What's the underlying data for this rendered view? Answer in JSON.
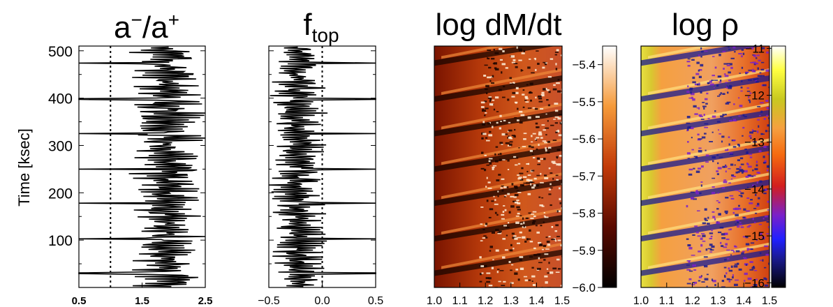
{
  "ylabel": "Time [ksec]",
  "chart_data": [
    {
      "type": "line",
      "title_main": "a",
      "title_sup1": "−",
      "title_mid": "/a",
      "title_sup2": "+",
      "x_ticks": [
        "0.5",
        "1.5",
        "2.5"
      ],
      "xlim": [
        0.5,
        2.5
      ],
      "ylim": [
        0,
        510
      ],
      "y_ticks": [
        "100",
        "200",
        "300",
        "400",
        "500"
      ],
      "ref_line_x": 1.0,
      "series_summary": "oscillating a-/a+ ratio vs time, mostly between 1.3 and 2.5 with sharp dips to about 0.5 near t = 30, 103, 178, 250, 325, 398, 474",
      "events_t": [
        30,
        103,
        178,
        250,
        325,
        398,
        474
      ]
    },
    {
      "type": "line",
      "title_main": "f",
      "title_sub": "top",
      "x_ticks": [
        "−0.5",
        "0.0",
        "0.5"
      ],
      "xlim": [
        -0.5,
        0.5
      ],
      "ylim": [
        0,
        510
      ],
      "ref_line_x": 0.0,
      "series_summary": "oscillating f_top vs time, mostly between -0.5 and 0.1 with spikes to about 0.5 near the same event times",
      "events_t": [
        30,
        103,
        178,
        250,
        325,
        398,
        474
      ]
    },
    {
      "type": "heatmap",
      "title": "log dM/dt",
      "x_ticks": [
        "1.0",
        "1.1",
        "1.2",
        "1.3",
        "1.4",
        "1.5"
      ],
      "xlim": [
        1.0,
        1.5
      ],
      "ylim": [
        0,
        510
      ],
      "colorbar_ticks": [
        "−5.4",
        "−5.5",
        "−5.6",
        "−5.7",
        "−5.8",
        "−5.9",
        "−6.0"
      ],
      "colorbar_range": [
        -6.0,
        -5.35
      ],
      "colormap": "black-red-orange-white",
      "bands_t": [
        30,
        103,
        178,
        250,
        325,
        398,
        474
      ]
    },
    {
      "type": "heatmap",
      "title": "log ρ",
      "x_ticks": [
        "1.0",
        "1.1",
        "1.2",
        "1.3",
        "1.4",
        "1.5"
      ],
      "xlim": [
        1.0,
        1.5
      ],
      "ylim": [
        0,
        510
      ],
      "colorbar_ticks": [
        "−11",
        "−12",
        "−13",
        "−14",
        "−15",
        "−16"
      ],
      "colorbar_range": [
        -16.1,
        -10.95
      ],
      "colormap": "black-blue-purple-red-orange-yellow-white",
      "bands_t": [
        30,
        103,
        178,
        250,
        325,
        398,
        474
      ]
    }
  ]
}
